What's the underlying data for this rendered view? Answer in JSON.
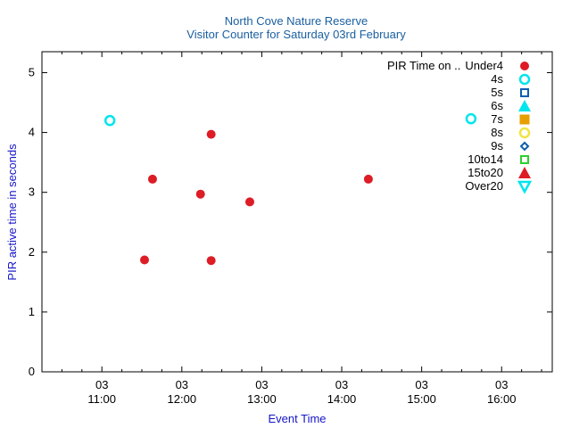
{
  "chart_data": {
    "type": "scatter",
    "title": "North Cove Nature Reserve",
    "subtitle": "Visitor Counter for Saturday 03rd February",
    "xlabel": "Event Time",
    "ylabel": "PIR active time in seconds",
    "ylim": [
      0,
      5.35
    ],
    "y_ticks": [
      "0",
      "1",
      "2",
      "3",
      "4",
      "5"
    ],
    "xlim": [
      "10:15",
      "16:38"
    ],
    "x_ticks": [
      {
        "time": "11:00",
        "date": "03",
        "label": "11:00"
      },
      {
        "time": "12:00",
        "date": "03",
        "label": "12:00"
      },
      {
        "time": "13:00",
        "date": "03",
        "label": "13:00"
      },
      {
        "time": "14:00",
        "date": "03",
        "label": "14:00"
      },
      {
        "time": "15:00",
        "date": "03",
        "label": "15:00"
      },
      {
        "time": "16:00",
        "date": "03",
        "label": "16:00"
      }
    ],
    "grid": false,
    "legend_position": "top-right",
    "legend_title": "PIR Time on ..",
    "series": [
      {
        "name": "Under4",
        "marker": "circle-filled",
        "color": "#dd1c26",
        "points": [
          {
            "x": "11:32",
            "y": 1.87
          },
          {
            "x": "11:38",
            "y": 3.22
          },
          {
            "x": "12:14",
            "y": 2.97
          },
          {
            "x": "12:22",
            "y": 3.97
          },
          {
            "x": "12:22",
            "y": 1.86
          },
          {
            "x": "12:51",
            "y": 2.84
          },
          {
            "x": "14:20",
            "y": 3.22
          }
        ]
      },
      {
        "name": "4s",
        "marker": "circle-open",
        "color": "#00e5ee",
        "points": [
          {
            "x": "11:06",
            "y": 4.2
          },
          {
            "x": "15:37",
            "y": 4.23
          }
        ]
      },
      {
        "name": "5s",
        "marker": "square-open",
        "color": "#0c5fb0",
        "points": []
      },
      {
        "name": "6s",
        "marker": "triangle-filled",
        "color": "#00e5ee",
        "points": []
      },
      {
        "name": "7s",
        "marker": "square-filled",
        "color": "#e69f00",
        "points": []
      },
      {
        "name": "8s",
        "marker": "circle-open",
        "color": "#f0e442",
        "points": []
      },
      {
        "name": "9s",
        "marker": "diamond-open",
        "color": "#0c5fb0",
        "points": []
      },
      {
        "name": "10to14",
        "marker": "square-open",
        "color": "#2ed02e",
        "points": []
      },
      {
        "name": "15to20",
        "marker": "triangle-filled",
        "color": "#dd1c26",
        "points": []
      },
      {
        "name": "Over20",
        "marker": "triangle-down-open",
        "color": "#00e5ee",
        "points": []
      }
    ],
    "colors": {
      "title": "#1a5fa0",
      "axis_label": "#1515c8",
      "axis": "#000000"
    }
  }
}
